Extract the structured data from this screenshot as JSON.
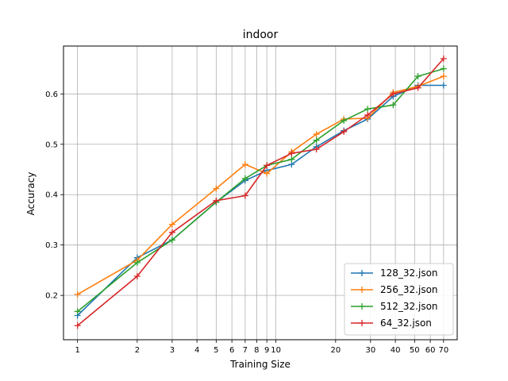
{
  "chart_data": {
    "type": "line",
    "title": "indoor",
    "xlabel": "Training Size",
    "ylabel": "Accuracy",
    "xscale": "log",
    "xlim": [
      0.85,
      82
    ],
    "ylim": [
      0.112,
      0.695
    ],
    "xticks": [
      1,
      2,
      3,
      4,
      5,
      6,
      7,
      8,
      9,
      10,
      20,
      30,
      40,
      50,
      60,
      70
    ],
    "xtick_labels": [
      "1",
      "2",
      "3",
      "4",
      "5",
      "6",
      "7",
      "8",
      "9",
      "10",
      "20",
      "30",
      "40",
      "50",
      "60",
      "70"
    ],
    "yticks": [
      0.2,
      0.3,
      0.4,
      0.5,
      0.6
    ],
    "ytick_labels": [
      "0.2",
      "0.3",
      "0.4",
      "0.5",
      "0.6"
    ],
    "grid": true,
    "legend_position": "bottom-right",
    "x": [
      1,
      2,
      3,
      5,
      7,
      9,
      12,
      16,
      22,
      29,
      39,
      52,
      70
    ],
    "series": [
      {
        "name": "128_32.json",
        "color": "#1f77b4",
        "values": [
          0.16,
          0.275,
          0.31,
          0.385,
          0.428,
          0.448,
          0.46,
          0.495,
          0.527,
          0.55,
          0.595,
          0.617,
          0.617
        ]
      },
      {
        "name": "256_32.json",
        "color": "#ff7f0e",
        "values": [
          0.202,
          0.27,
          0.341,
          0.412,
          0.46,
          0.442,
          0.485,
          0.52,
          0.55,
          0.552,
          0.603,
          0.615,
          0.635
        ]
      },
      {
        "name": "512_32.json",
        "color": "#2ca02c",
        "values": [
          0.168,
          0.265,
          0.31,
          0.385,
          0.432,
          0.458,
          0.47,
          0.508,
          0.547,
          0.57,
          0.578,
          0.635,
          0.65
        ]
      },
      {
        "name": "64_32.json",
        "color": "#d62728",
        "values": [
          0.14,
          0.238,
          0.325,
          0.388,
          0.398,
          0.458,
          0.482,
          0.49,
          0.525,
          0.558,
          0.6,
          0.612,
          0.67
        ]
      }
    ]
  }
}
